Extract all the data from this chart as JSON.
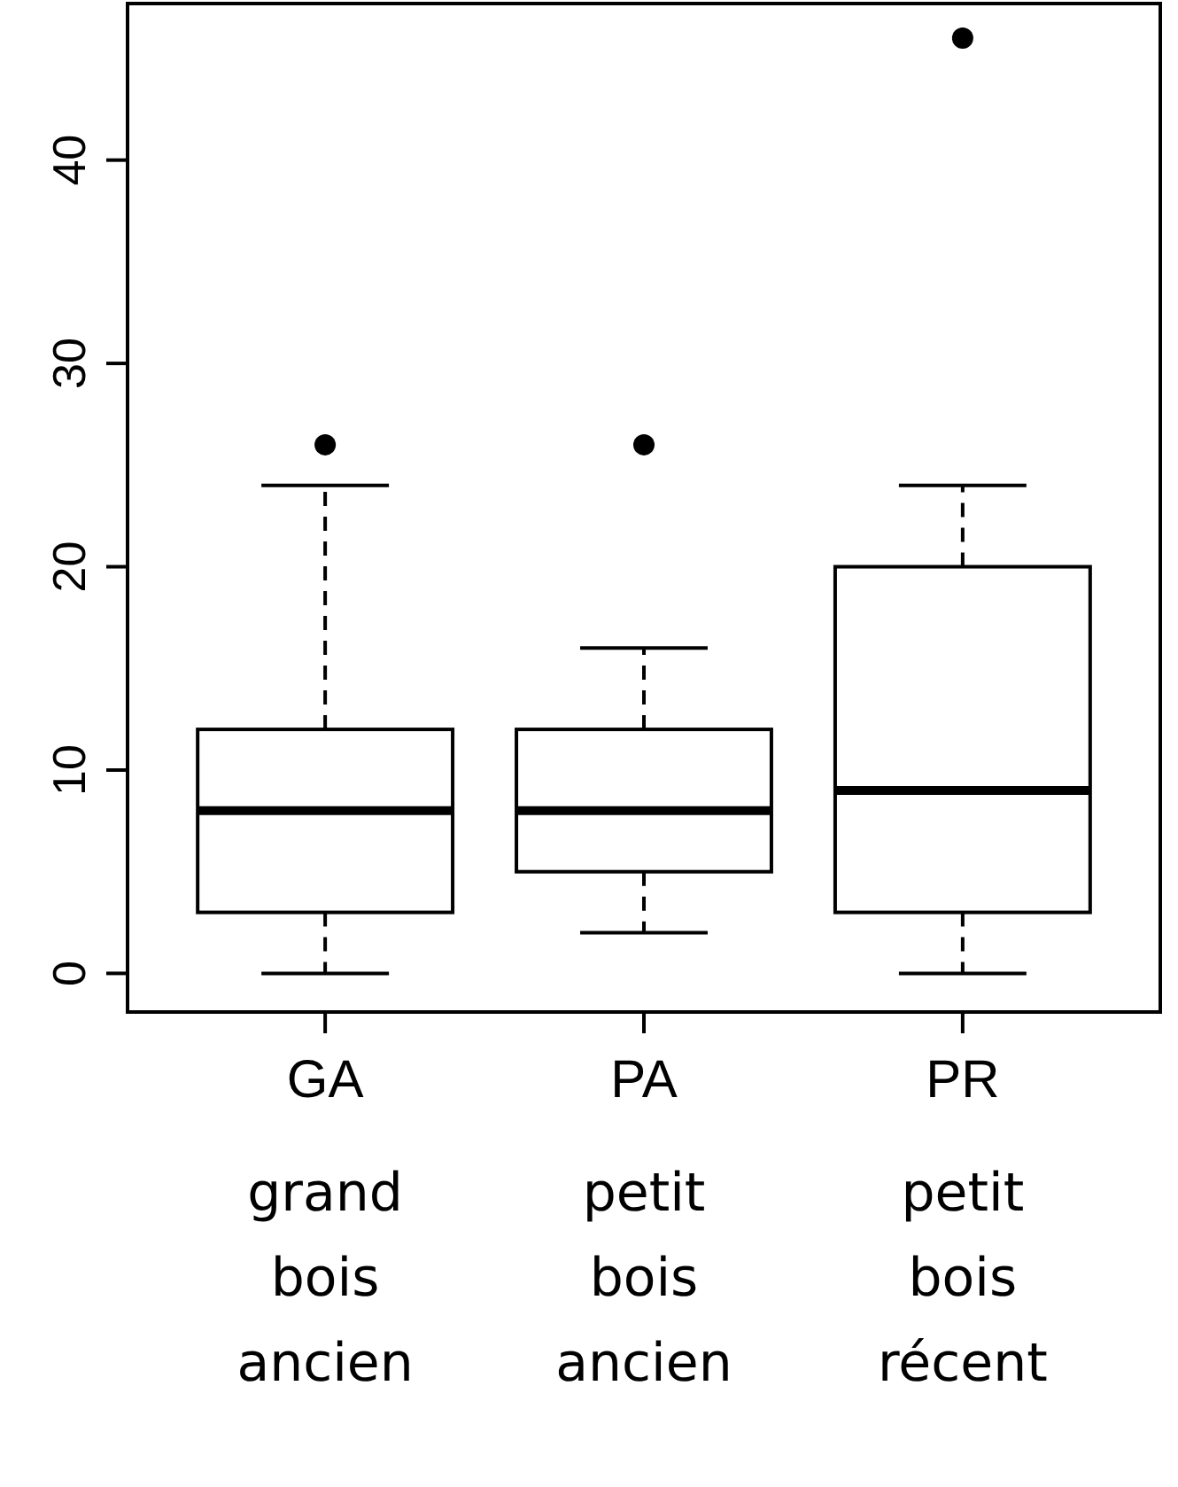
{
  "chart_data": {
    "type": "box",
    "categories": [
      "GA",
      "PA",
      "PR"
    ],
    "boxes": [
      {
        "low": 0,
        "q1": 3,
        "median": 8,
        "q3": 12,
        "high": 24,
        "outliers": [
          26
        ]
      },
      {
        "low": 2,
        "q1": 5,
        "median": 8,
        "q3": 12,
        "high": 16,
        "outliers": [
          26
        ]
      },
      {
        "low": 0,
        "q1": 3,
        "median": 9,
        "q3": 20,
        "high": 24,
        "outliers": [
          46
        ]
      }
    ],
    "ylim": [
      -1.9,
      47.7
    ],
    "yticks": [
      0,
      10,
      20,
      30,
      40
    ],
    "grid": false,
    "annotations": [
      "grand bois ancien",
      "petit bois ancien",
      "petit bois récent"
    ]
  }
}
